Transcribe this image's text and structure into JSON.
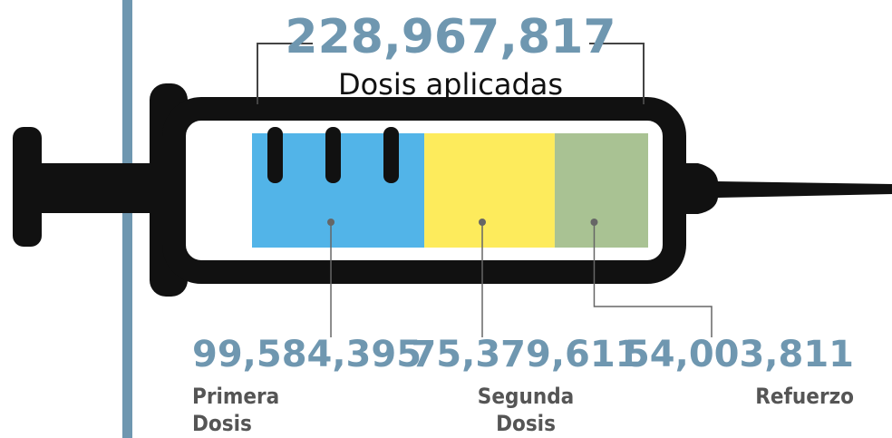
{
  "chart_data": {
    "type": "bar",
    "total": {
      "value": 228967817,
      "label": "228,967,817"
    },
    "total_caption": "Dosis aplicadas",
    "categories": [
      "Primera Dosis",
      "Segunda Dosis",
      "Refuerzo"
    ],
    "values": [
      99584395,
      75379611,
      54003811
    ],
    "value_labels": [
      "99,584,395",
      "75,379,611",
      "54,003,811"
    ],
    "colors": [
      "#52b4e8",
      "#fdeb5c",
      "#a9c293"
    ]
  }
}
